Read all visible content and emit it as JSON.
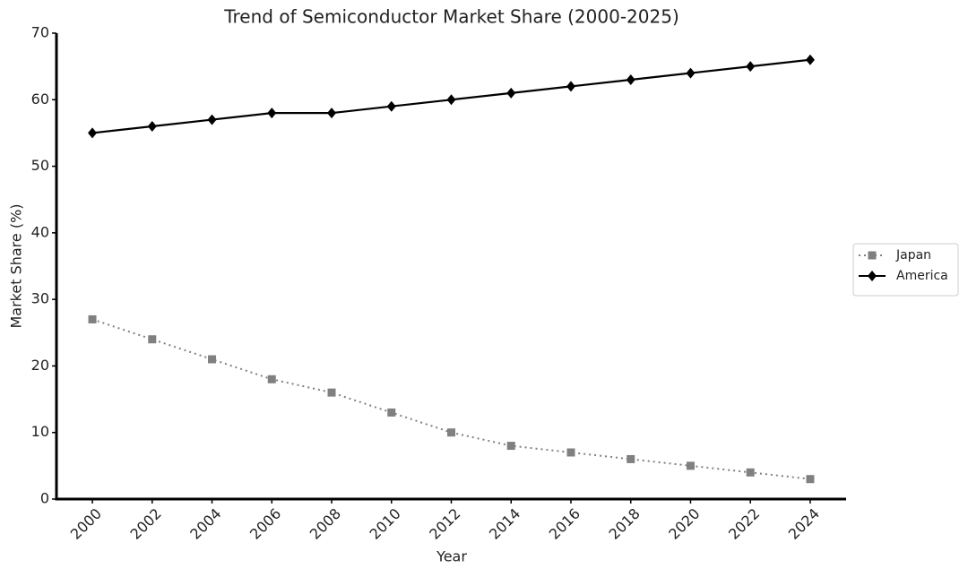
{
  "chart_data": {
    "type": "line",
    "title": "Trend of Semiconductor Market Share (2000-2025)",
    "x_label": "Year",
    "y_label": "Market Share (%)",
    "x": [
      2000,
      2002,
      2004,
      2006,
      2008,
      2010,
      2012,
      2014,
      2016,
      2018,
      2020,
      2022,
      2024
    ],
    "series": [
      {
        "name": "Japan",
        "color": "#808080",
        "dash": "dotted",
        "marker": "square",
        "values": [
          27,
          24,
          21,
          18,
          16,
          13,
          10,
          8,
          7,
          6,
          5,
          4,
          3
        ]
      },
      {
        "name": "America",
        "color": "#000000",
        "dash": "solid",
        "marker": "diamond",
        "values": [
          55,
          56,
          57,
          58,
          58,
          59,
          60,
          61,
          62,
          63,
          64,
          65,
          66
        ]
      }
    ],
    "xlim": [
      1998.8,
      2025.2
    ],
    "xticks": [
      2000,
      2002,
      2004,
      2006,
      2008,
      2010,
      2012,
      2014,
      2016,
      2018,
      2020,
      2022,
      2024
    ],
    "ylim": [
      0,
      70
    ],
    "yticks": [
      0,
      10,
      20,
      30,
      40,
      50,
      60,
      70
    ],
    "grid": false,
    "legend": "right"
  }
}
